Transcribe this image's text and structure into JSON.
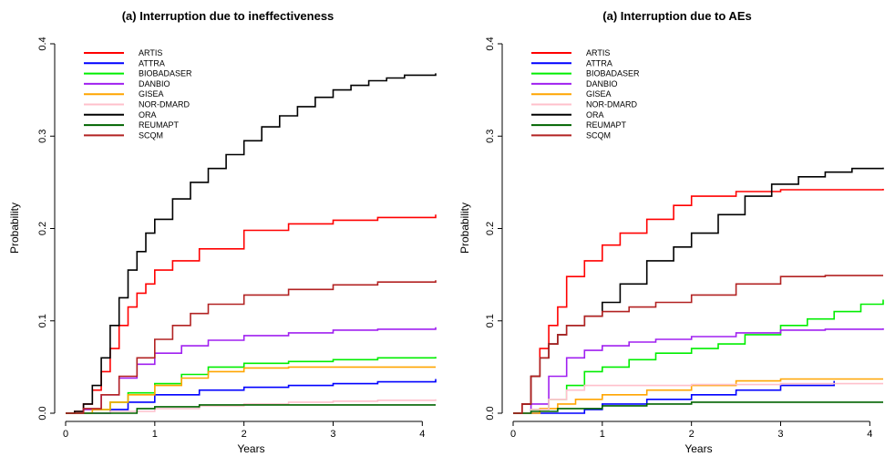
{
  "chart_data": [
    {
      "type": "line",
      "title": "(a) Interruption due to ineffectiveness",
      "xlabel": "Years",
      "ylabel": "Probability",
      "xlim": [
        0,
        4.15
      ],
      "ylim": [
        0,
        0.4
      ],
      "xticks": [
        "0",
        "1",
        "2",
        "3",
        "4"
      ],
      "yticks": [
        "0.0",
        "0.1",
        "0.2",
        "0.3",
        "0.4"
      ],
      "step": true,
      "grid": false,
      "legend_position": "top-left",
      "series": [
        {
          "name": "ARTIS",
          "color": "#ff0000",
          "x": [
            0,
            0.1,
            0.2,
            0.3,
            0.4,
            0.5,
            0.6,
            0.7,
            0.8,
            0.9,
            1.0,
            1.2,
            1.5,
            2.0,
            2.5,
            3.0,
            3.5,
            4.15
          ],
          "y": [
            0,
            0.002,
            0.01,
            0.025,
            0.045,
            0.07,
            0.095,
            0.115,
            0.13,
            0.14,
            0.155,
            0.165,
            0.178,
            0.198,
            0.205,
            0.209,
            0.212,
            0.215
          ]
        },
        {
          "name": "ATTRA",
          "color": "#0000ff",
          "x": [
            0,
            0.4,
            0.5,
            0.7,
            1.0,
            1.5,
            2.0,
            2.5,
            3.0,
            3.5,
            4.15
          ],
          "y": [
            0,
            0,
            0.004,
            0.012,
            0.02,
            0.025,
            0.028,
            0.03,
            0.032,
            0.034,
            0.037
          ]
        },
        {
          "name": "BIOBADASER",
          "color": "#00ee00",
          "x": [
            0,
            0.3,
            0.5,
            0.7,
            1.0,
            1.3,
            1.6,
            2.0,
            2.5,
            3.0,
            3.5,
            4.15
          ],
          "y": [
            0,
            0.004,
            0.012,
            0.022,
            0.032,
            0.042,
            0.05,
            0.054,
            0.056,
            0.058,
            0.06,
            0.061
          ]
        },
        {
          "name": "DANBIO",
          "color": "#a020f0",
          "x": [
            0,
            0.2,
            0.4,
            0.6,
            0.8,
            1.0,
            1.3,
            1.6,
            2.0,
            2.5,
            3.0,
            3.5,
            4.15
          ],
          "y": [
            0,
            0.004,
            0.02,
            0.038,
            0.053,
            0.065,
            0.073,
            0.079,
            0.084,
            0.087,
            0.09,
            0.091,
            0.093
          ]
        },
        {
          "name": "GISEA",
          "color": "#ffa500",
          "x": [
            0,
            0.3,
            0.5,
            0.7,
            1.0,
            1.3,
            1.6,
            2.0,
            2.5,
            3.0,
            3.5,
            4.15
          ],
          "y": [
            0,
            0.004,
            0.012,
            0.02,
            0.03,
            0.038,
            0.045,
            0.049,
            0.05,
            0.05,
            0.05,
            0.05
          ]
        },
        {
          "name": "NOR-DMARD",
          "color": "#ffc0cb",
          "x": [
            0,
            0.5,
            1.0,
            1.5,
            2.0,
            2.5,
            3.0,
            3.5,
            4.15
          ],
          "y": [
            0,
            0.002,
            0.005,
            0.008,
            0.01,
            0.012,
            0.013,
            0.014,
            0.015
          ]
        },
        {
          "name": "ORA",
          "color": "#000000",
          "x": [
            0,
            0.1,
            0.2,
            0.3,
            0.4,
            0.5,
            0.6,
            0.7,
            0.8,
            0.9,
            1.0,
            1.2,
            1.4,
            1.6,
            1.8,
            2.0,
            2.2,
            2.4,
            2.6,
            2.8,
            3.0,
            3.2,
            3.4,
            3.6,
            3.8,
            4.15
          ],
          "y": [
            0,
            0.002,
            0.01,
            0.03,
            0.06,
            0.095,
            0.125,
            0.155,
            0.175,
            0.195,
            0.21,
            0.232,
            0.25,
            0.265,
            0.28,
            0.295,
            0.31,
            0.322,
            0.332,
            0.342,
            0.35,
            0.355,
            0.36,
            0.363,
            0.366,
            0.368
          ]
        },
        {
          "name": "REUMAPT",
          "color": "#006400",
          "x": [
            0,
            0.5,
            0.8,
            1.0,
            1.5,
            4.15
          ],
          "y": [
            0,
            0,
            0.005,
            0.007,
            0.009,
            0.009
          ]
        },
        {
          "name": "SCQM",
          "color": "#b22222",
          "x": [
            0,
            0.2,
            0.4,
            0.6,
            0.8,
            1.0,
            1.2,
            1.4,
            1.6,
            2.0,
            2.5,
            3.0,
            3.5,
            4.15
          ],
          "y": [
            0,
            0.005,
            0.02,
            0.04,
            0.06,
            0.08,
            0.095,
            0.108,
            0.118,
            0.128,
            0.134,
            0.139,
            0.142,
            0.144
          ]
        }
      ]
    },
    {
      "type": "line",
      "title": "(a) Interruption due to AEs",
      "xlabel": "Years",
      "ylabel": "Probability",
      "xlim": [
        0,
        4.15
      ],
      "ylim": [
        0,
        0.4
      ],
      "xticks": [
        "0",
        "1",
        "2",
        "3",
        "4"
      ],
      "yticks": [
        "0.0",
        "0.1",
        "0.2",
        "0.3",
        "0.4"
      ],
      "step": true,
      "grid": false,
      "legend_position": "top-left",
      "series": [
        {
          "name": "ARTIS",
          "color": "#ff0000",
          "x": [
            0,
            0.1,
            0.2,
            0.3,
            0.4,
            0.5,
            0.6,
            0.8,
            1.0,
            1.2,
            1.5,
            1.8,
            2.0,
            2.5,
            3.0,
            4.15
          ],
          "y": [
            0,
            0.01,
            0.04,
            0.07,
            0.095,
            0.115,
            0.148,
            0.165,
            0.182,
            0.195,
            0.21,
            0.225,
            0.235,
            0.24,
            0.242,
            0.243
          ]
        },
        {
          "name": "ATTRA",
          "color": "#0000ff",
          "x": [
            0,
            0.5,
            0.8,
            1.0,
            1.5,
            2.0,
            2.5,
            3.0,
            3.6
          ],
          "y": [
            0,
            0,
            0.004,
            0.01,
            0.015,
            0.02,
            0.025,
            0.03,
            0.035
          ]
        },
        {
          "name": "BIOBADASER",
          "color": "#00ee00",
          "x": [
            0,
            0.2,
            0.4,
            0.6,
            0.8,
            1.0,
            1.3,
            1.6,
            2.0,
            2.3,
            2.6,
            3.0,
            3.3,
            3.6,
            3.9,
            4.15
          ],
          "y": [
            0,
            0.004,
            0.015,
            0.03,
            0.045,
            0.05,
            0.058,
            0.065,
            0.07,
            0.075,
            0.085,
            0.095,
            0.102,
            0.11,
            0.118,
            0.123
          ]
        },
        {
          "name": "DANBIO",
          "color": "#a020f0",
          "x": [
            0,
            0.2,
            0.4,
            0.6,
            0.8,
            1.0,
            1.3,
            1.6,
            2.0,
            2.5,
            3.0,
            3.5,
            4.15
          ],
          "y": [
            0,
            0.01,
            0.04,
            0.06,
            0.068,
            0.073,
            0.077,
            0.08,
            0.083,
            0.087,
            0.09,
            0.091,
            0.092
          ]
        },
        {
          "name": "GISEA",
          "color": "#ffa500",
          "x": [
            0,
            0.3,
            0.5,
            0.7,
            1.0,
            1.5,
            2.0,
            2.5,
            3.0,
            3.5,
            4.15
          ],
          "y": [
            0,
            0.005,
            0.01,
            0.015,
            0.02,
            0.025,
            0.03,
            0.035,
            0.037,
            0.037,
            0.037
          ]
        },
        {
          "name": "NOR-DMARD",
          "color": "#ffc0cb",
          "x": [
            0,
            0.2,
            0.4,
            0.6,
            0.8,
            1.0,
            1.5,
            2.0,
            2.5,
            3.0,
            3.5,
            4.15
          ],
          "y": [
            0,
            0.004,
            0.015,
            0.025,
            0.03,
            0.03,
            0.03,
            0.031,
            0.031,
            0.032,
            0.032,
            0.032
          ]
        },
        {
          "name": "ORA",
          "color": "#000000",
          "x": [
            0,
            0.1,
            0.2,
            0.3,
            0.4,
            0.5,
            0.6,
            0.8,
            1.0,
            1.2,
            1.5,
            1.8,
            2.0,
            2.3,
            2.6,
            2.9,
            3.2,
            3.5,
            3.8,
            4.15
          ],
          "y": [
            0,
            0.01,
            0.04,
            0.06,
            0.075,
            0.085,
            0.095,
            0.105,
            0.12,
            0.14,
            0.165,
            0.18,
            0.195,
            0.215,
            0.235,
            0.248,
            0.256,
            0.261,
            0.265,
            0.266
          ]
        },
        {
          "name": "REUMAPT",
          "color": "#006400",
          "x": [
            0,
            0.2,
            0.5,
            1.0,
            1.5,
            2.0,
            4.15
          ],
          "y": [
            0,
            0.002,
            0.005,
            0.008,
            0.01,
            0.012,
            0.012
          ]
        },
        {
          "name": "SCQM",
          "color": "#b22222",
          "x": [
            0,
            0.1,
            0.2,
            0.3,
            0.4,
            0.5,
            0.6,
            0.8,
            1.0,
            1.3,
            1.6,
            2.0,
            2.5,
            3.0,
            3.5,
            4.15
          ],
          "y": [
            0,
            0.01,
            0.04,
            0.06,
            0.075,
            0.085,
            0.095,
            0.105,
            0.11,
            0.115,
            0.12,
            0.128,
            0.14,
            0.148,
            0.149,
            0.149
          ]
        }
      ]
    }
  ]
}
